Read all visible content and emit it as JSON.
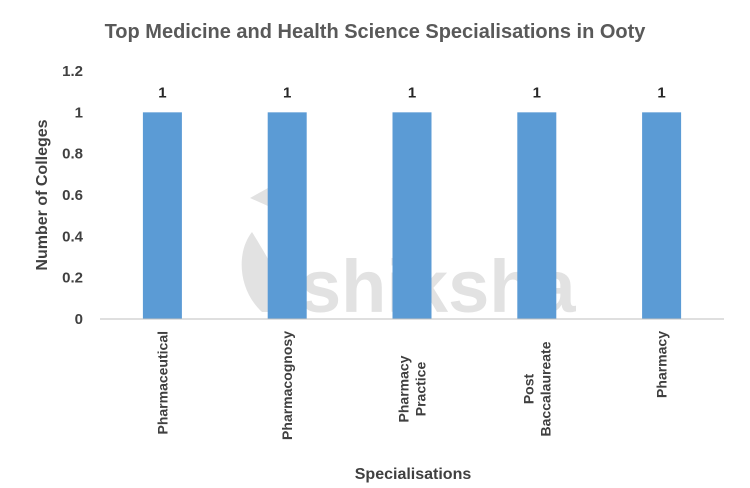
{
  "chart_data": {
    "type": "bar",
    "title": "Top Medicine and Health Science Specialisations in Ooty",
    "xlabel": "Specialisations",
    "ylabel": "Number of Colleges",
    "categories": [
      [
        "Pharmaceutical"
      ],
      [
        "Pharmacognosy"
      ],
      [
        "Pharmacy",
        "Practice"
      ],
      [
        "Post",
        "Baccalaureate"
      ],
      [
        "Pharmacy"
      ]
    ],
    "values": [
      1,
      1,
      1,
      1,
      1
    ],
    "data_labels": [
      "1",
      "1",
      "1",
      "1",
      "1"
    ],
    "yticks": [
      "0",
      "0.2",
      "0.4",
      "0.6",
      "0.8",
      "1",
      "1.2"
    ],
    "ylim": [
      0,
      1.2
    ],
    "grid": false,
    "bar_color": "#5b9bd5"
  },
  "watermark": "shiksha"
}
